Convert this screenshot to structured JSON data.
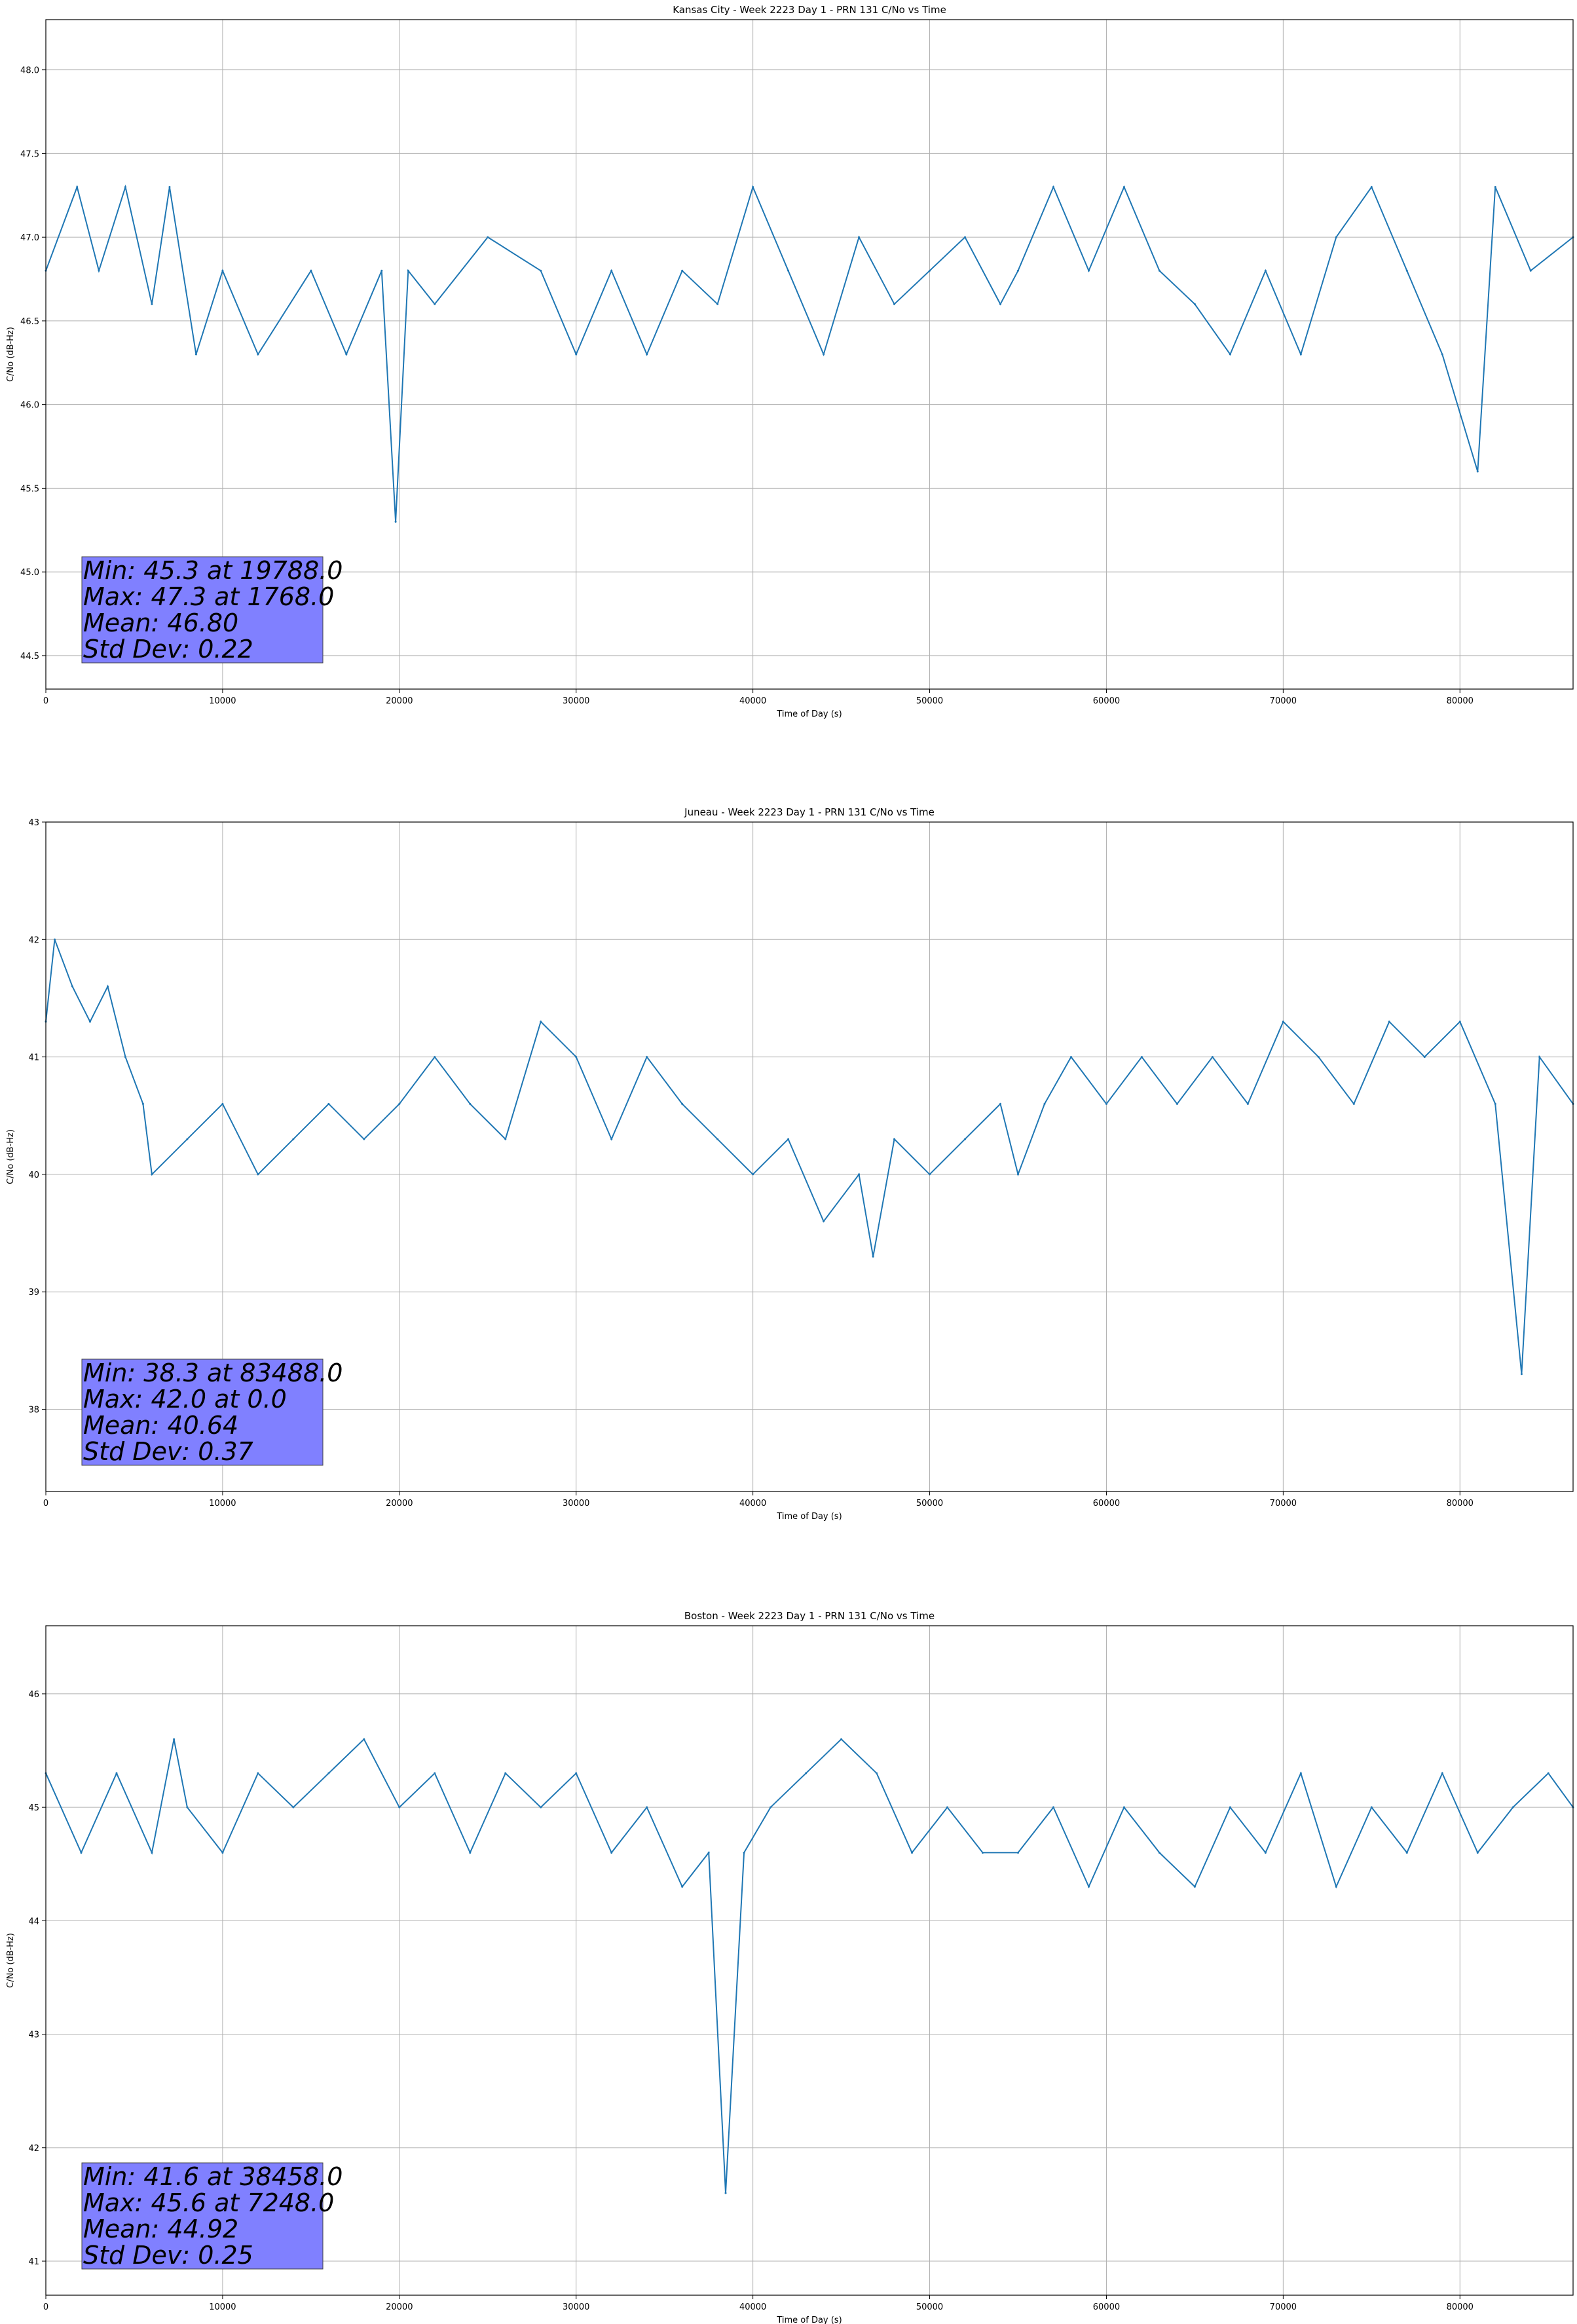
{
  "colors": {
    "series": "#1f77b4",
    "grid": "#b0b0b0",
    "stats_box": "#8080ff",
    "axes": "#000000"
  },
  "chart_data": [
    {
      "type": "line",
      "title": "Kansas City - Week 2223 Day 1 - PRN 131 C/No vs Time",
      "xlabel": "Time of Day (s)",
      "ylabel": "C/No (dB-Hz)",
      "xlim": [
        0,
        86400
      ],
      "ylim": [
        44.3,
        48.3
      ],
      "xticks": [
        0,
        10000,
        20000,
        30000,
        40000,
        50000,
        60000,
        70000,
        80000
      ],
      "yticks": [
        44.5,
        45.0,
        45.5,
        46.0,
        46.5,
        47.0,
        47.5,
        48.0
      ],
      "ytick_labels": [
        "44.5",
        "45.0",
        "45.5",
        "46.0",
        "46.5",
        "47.0",
        "47.5",
        "48.0"
      ],
      "grid": true,
      "series": [
        {
          "x": [
            0,
            1768,
            3000,
            4500,
            6000,
            7000,
            8500,
            10000,
            12000,
            15000,
            17000,
            19000,
            19788,
            20500,
            22000,
            25000,
            28000,
            30000,
            32000,
            34000,
            36000,
            38000,
            40000,
            42000,
            44000,
            46000,
            48000,
            50000,
            52000,
            54000,
            55000,
            57000,
            59000,
            61000,
            63000,
            65000,
            67000,
            69000,
            71000,
            73000,
            75000,
            77000,
            79000,
            81000,
            82000,
            84000,
            86400
          ],
          "y": [
            46.8,
            47.3,
            46.8,
            47.3,
            46.6,
            47.3,
            46.3,
            46.8,
            46.3,
            46.8,
            46.3,
            46.8,
            45.3,
            46.8,
            46.6,
            47.0,
            46.8,
            46.3,
            46.8,
            46.3,
            46.8,
            46.6,
            47.3,
            46.8,
            46.3,
            47.0,
            46.6,
            46.8,
            47.0,
            46.6,
            46.8,
            47.3,
            46.8,
            47.3,
            46.8,
            46.6,
            46.3,
            46.8,
            46.3,
            47.0,
            47.3,
            46.8,
            46.3,
            45.6,
            47.3,
            46.8,
            47.0
          ]
        }
      ],
      "stats": [
        "Min: 45.3 at 19788.0",
        "Max: 47.3 at 1768.0",
        "Mean: 46.80",
        "Std Dev: 0.22"
      ]
    },
    {
      "type": "line",
      "title": "Juneau - Week 2223 Day 1 - PRN 131 C/No vs Time",
      "xlabel": "Time of Day (s)",
      "ylabel": "C/No (dB-Hz)",
      "xlim": [
        0,
        86400
      ],
      "ylim": [
        37.3,
        43.0
      ],
      "xticks": [
        0,
        10000,
        20000,
        30000,
        40000,
        50000,
        60000,
        70000,
        80000
      ],
      "yticks": [
        38,
        39,
        40,
        41,
        42,
        43
      ],
      "ytick_labels": [
        "38",
        "39",
        "40",
        "41",
        "42",
        "43"
      ],
      "grid": true,
      "series": [
        {
          "x": [
            0,
            500,
            1500,
            2500,
            3500,
            4500,
            5500,
            6000,
            8000,
            10000,
            12000,
            14000,
            16000,
            18000,
            20000,
            22000,
            24000,
            26000,
            28000,
            30000,
            32000,
            34000,
            36000,
            38000,
            40000,
            42000,
            44000,
            46000,
            46800,
            48000,
            50000,
            52000,
            54000,
            55000,
            56500,
            58000,
            60000,
            62000,
            64000,
            66000,
            68000,
            70000,
            72000,
            74000,
            76000,
            78000,
            80000,
            82000,
            83488,
            84500,
            86400
          ],
          "y": [
            41.3,
            42.0,
            41.6,
            41.3,
            41.6,
            41.0,
            40.6,
            40.0,
            40.3,
            40.6,
            40.0,
            40.3,
            40.6,
            40.3,
            40.6,
            41.0,
            40.6,
            40.3,
            41.3,
            41.0,
            40.3,
            41.0,
            40.6,
            40.3,
            40.0,
            40.3,
            39.6,
            40.0,
            39.3,
            40.3,
            40.0,
            40.3,
            40.6,
            40.0,
            40.6,
            41.0,
            40.6,
            41.0,
            40.6,
            41.0,
            40.6,
            41.3,
            41.0,
            40.6,
            41.3,
            41.0,
            41.3,
            40.6,
            38.3,
            41.0,
            40.6
          ]
        }
      ],
      "stats": [
        "Min: 38.3 at 83488.0",
        "Max: 42.0 at 0.0",
        "Mean: 40.64",
        "Std Dev: 0.37"
      ]
    },
    {
      "type": "line",
      "title": "Boston - Week 2223 Day 1 - PRN 131 C/No vs Time",
      "xlabel": "Time of Day (s)",
      "ylabel": "C/No (dB-Hz)",
      "xlim": [
        0,
        86400
      ],
      "ylim": [
        40.7,
        46.6
      ],
      "xticks": [
        0,
        10000,
        20000,
        30000,
        40000,
        50000,
        60000,
        70000,
        80000
      ],
      "yticks": [
        41,
        42,
        43,
        44,
        45,
        46
      ],
      "ytick_labels": [
        "41",
        "42",
        "43",
        "44",
        "45",
        "46"
      ],
      "grid": true,
      "series": [
        {
          "x": [
            0,
            2000,
            4000,
            6000,
            7248,
            8000,
            10000,
            12000,
            14000,
            16000,
            18000,
            20000,
            22000,
            24000,
            26000,
            28000,
            30000,
            32000,
            34000,
            36000,
            37500,
            38458,
            39500,
            41000,
            43000,
            45000,
            47000,
            49000,
            51000,
            53000,
            55000,
            57000,
            59000,
            61000,
            63000,
            65000,
            67000,
            69000,
            71000,
            73000,
            75000,
            77000,
            79000,
            81000,
            83000,
            85000,
            86400
          ],
          "y": [
            45.3,
            44.6,
            45.3,
            44.6,
            45.6,
            45.0,
            44.6,
            45.3,
            45.0,
            45.3,
            45.6,
            45.0,
            45.3,
            44.6,
            45.3,
            45.0,
            45.3,
            44.6,
            45.0,
            44.3,
            44.6,
            41.6,
            44.6,
            45.0,
            45.3,
            45.6,
            45.3,
            44.6,
            45.0,
            44.6,
            44.6,
            45.0,
            44.3,
            45.0,
            44.6,
            44.3,
            45.0,
            44.6,
            45.3,
            44.3,
            45.0,
            44.6,
            45.3,
            44.6,
            45.0,
            45.3,
            45.0
          ]
        }
      ],
      "stats": [
        "Min: 41.6 at 38458.0",
        "Max: 45.6 at 7248.0",
        "Mean: 44.92",
        "Std Dev: 0.25"
      ]
    }
  ]
}
